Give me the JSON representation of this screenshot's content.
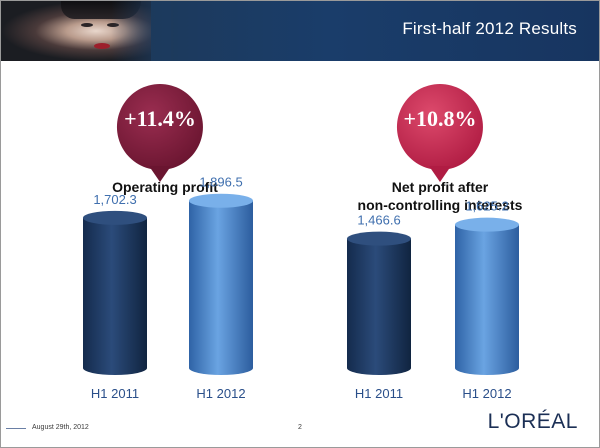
{
  "header": {
    "title": "First-half 2012 Results"
  },
  "footer": {
    "date": "August 29th, 2012",
    "page": "2",
    "logo": "L'ORÉAL"
  },
  "colors": {
    "bar_2011": "#1f3a63",
    "bar_2012": "#4a85c9",
    "pin_left": "#7b1b3a",
    "pin_right": "#c4284f"
  },
  "chart_data": [
    {
      "type": "bar",
      "title": "Operating profit",
      "badge": "+11.4%",
      "categories": [
        "H1 2011",
        "H1 2012"
      ],
      "values": [
        1702.3,
        1896.5
      ],
      "value_labels": [
        "1,702.3",
        "1,896.5"
      ]
    },
    {
      "type": "bar",
      "title": "Net profit after non-controlling interests",
      "title_lines": [
        "Net profit after",
        "non-controlling interests"
      ],
      "badge": "+10.8%",
      "categories": [
        "H1 2011",
        "H1 2012"
      ],
      "values": [
        1466.6,
        1625.2
      ],
      "value_labels": [
        "1,466.6",
        "1,625.2"
      ]
    }
  ]
}
